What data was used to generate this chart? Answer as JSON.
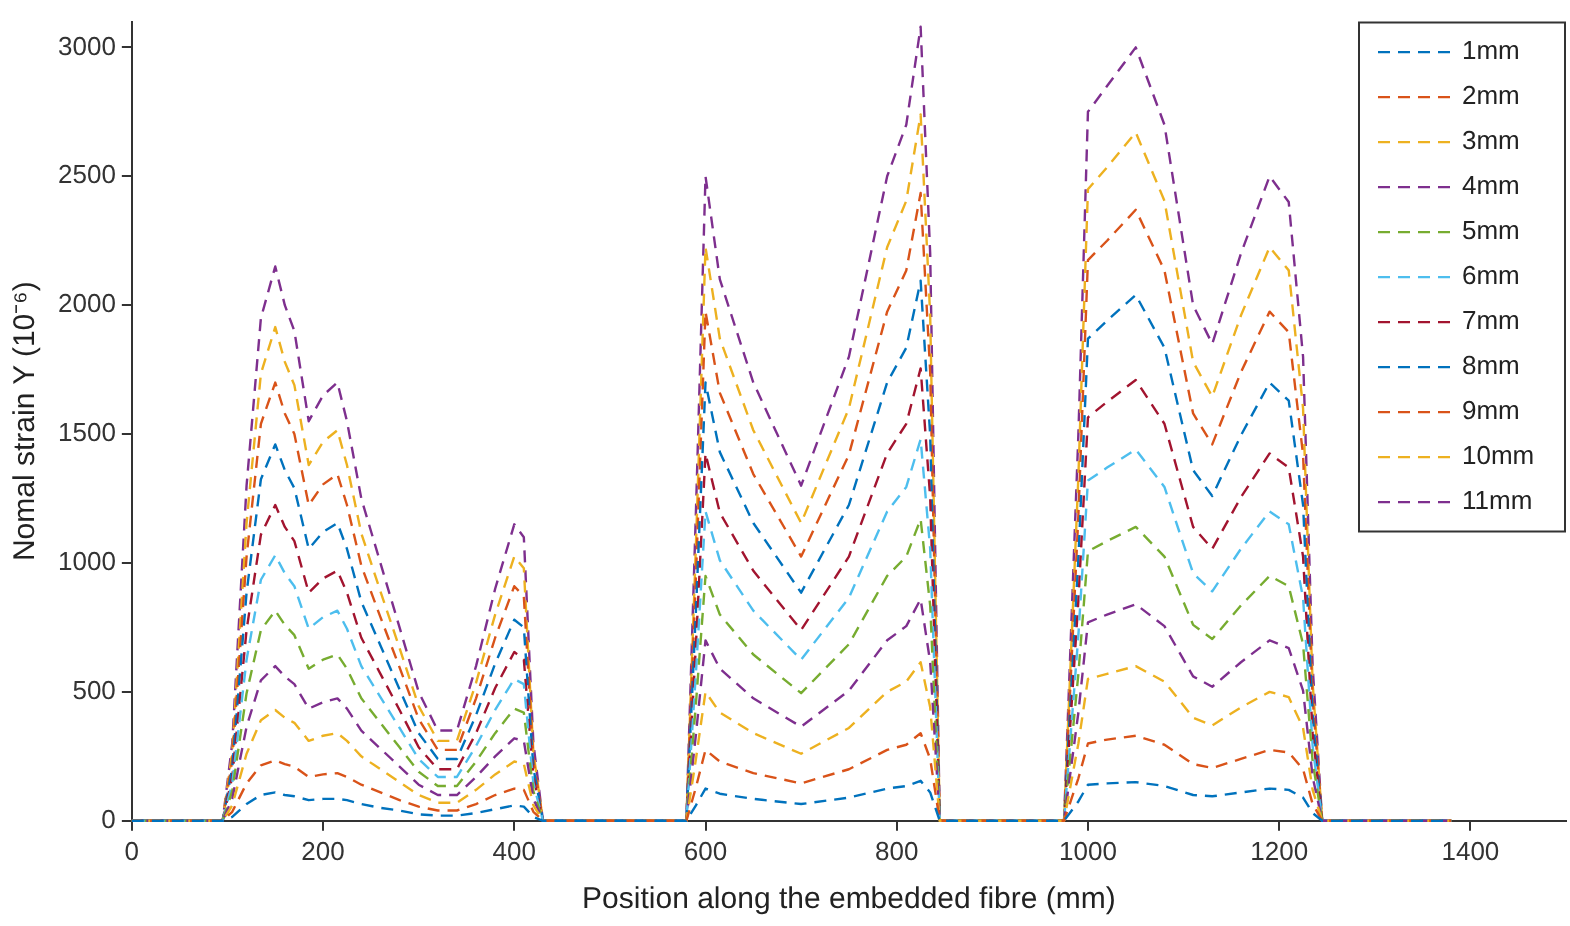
{
  "chart_data": {
    "type": "line",
    "xlabel": "Position along the embedded fibre (mm)",
    "ylabel": "Nomal strain Y (10⁻⁶)",
    "x": [
      0,
      95,
      105,
      120,
      135,
      150,
      160,
      170,
      185,
      200,
      215,
      225,
      240,
      260,
      280,
      300,
      320,
      340,
      360,
      380,
      400,
      410,
      420,
      430,
      570,
      580,
      590,
      600,
      615,
      650,
      700,
      750,
      790,
      810,
      825,
      835,
      845,
      960,
      975,
      990,
      1000,
      1020,
      1050,
      1080,
      1110,
      1130,
      1160,
      1190,
      1210,
      1225,
      1235,
      1245,
      1380
    ],
    "xlim": [
      0,
      1500
    ],
    "xticks": [
      0,
      200,
      400,
      600,
      800,
      1000,
      1200,
      1400
    ],
    "ylim": [
      0,
      3100
    ],
    "yticks": [
      0,
      500,
      1000,
      1500,
      2000,
      2500,
      3000
    ],
    "grid": false,
    "legend": "top right",
    "line_style": "dashed",
    "marker": "none",
    "series": [
      {
        "name": "1mm",
        "color": "#0072bd",
        "values": [
          0,
          0,
          15,
          65,
          100,
          110,
          100,
          95,
          80,
          85,
          85,
          80,
          65,
          50,
          40,
          25,
          20,
          20,
          30,
          45,
          60,
          55,
          15,
          0,
          0,
          0,
          60,
          125,
          105,
          85,
          65,
          90,
          125,
          135,
          155,
          110,
          0,
          0,
          0,
          75,
          140,
          145,
          150,
          135,
          100,
          95,
          110,
          125,
          120,
          90,
          30,
          0,
          0
        ]
      },
      {
        "name": "2mm",
        "color": "#d95319",
        "values": [
          0,
          0,
          35,
          145,
          215,
          235,
          220,
          210,
          170,
          180,
          185,
          170,
          140,
          110,
          80,
          55,
          40,
          40,
          65,
          100,
          125,
          120,
          35,
          0,
          0,
          0,
          130,
          275,
          230,
          185,
          145,
          200,
          275,
          295,
          340,
          240,
          0,
          0,
          0,
          165,
          300,
          315,
          330,
          295,
          220,
          205,
          240,
          275,
          265,
          200,
          65,
          0,
          0
        ]
      },
      {
        "name": "3mm",
        "color": "#edb120",
        "values": [
          0,
          0,
          60,
          260,
          390,
          430,
          400,
          380,
          310,
          330,
          340,
          310,
          250,
          200,
          150,
          100,
          70,
          70,
          120,
          180,
          230,
          220,
          60,
          0,
          0,
          0,
          240,
          500,
          420,
          340,
          260,
          360,
          500,
          540,
          615,
          440,
          0,
          0,
          0,
          300,
          550,
          570,
          600,
          540,
          400,
          370,
          440,
          500,
          480,
          360,
          120,
          0,
          0
        ]
      },
      {
        "name": "4mm",
        "color": "#7e2f8e",
        "values": [
          0,
          0,
          85,
          365,
          545,
          600,
          560,
          530,
          435,
          460,
          475,
          435,
          350,
          280,
          210,
          140,
          100,
          100,
          170,
          250,
          320,
          310,
          85,
          0,
          0,
          0,
          335,
          700,
          590,
          475,
          365,
          505,
          700,
          755,
          860,
          615,
          0,
          0,
          0,
          420,
          770,
          800,
          840,
          755,
          560,
          520,
          615,
          700,
          670,
          505,
          170,
          0,
          0
        ]
      },
      {
        "name": "5mm",
        "color": "#77ac30",
        "values": [
          0,
          0,
          115,
          495,
          740,
          815,
          760,
          720,
          590,
          625,
          645,
          590,
          475,
          380,
          285,
          190,
          135,
          135,
          230,
          340,
          435,
          420,
          115,
          0,
          0,
          0,
          455,
          950,
          800,
          645,
          495,
          685,
          950,
          1025,
          1170,
          835,
          0,
          0,
          0,
          570,
          1045,
          1085,
          1140,
          1025,
          760,
          705,
          835,
          950,
          910,
          685,
          230,
          0,
          0
        ]
      },
      {
        "name": "6mm",
        "color": "#4dbeee",
        "values": [
          0,
          0,
          145,
          625,
          935,
          1030,
          960,
          910,
          745,
          790,
          815,
          745,
          600,
          480,
          360,
          240,
          170,
          170,
          290,
          430,
          550,
          530,
          145,
          0,
          0,
          0,
          575,
          1200,
          1010,
          815,
          625,
          865,
          1200,
          1295,
          1480,
          1055,
          0,
          0,
          0,
          720,
          1320,
          1370,
          1440,
          1295,
          960,
          890,
          1055,
          1200,
          1150,
          865,
          290,
          0,
          0
        ]
      },
      {
        "name": "7mm",
        "color": "#a2142f",
        "values": [
          0,
          0,
          170,
          740,
          1110,
          1225,
          1140,
          1085,
          885,
          940,
          970,
          885,
          710,
          570,
          430,
          285,
          200,
          200,
          340,
          515,
          655,
          625,
          170,
          0,
          0,
          0,
          685,
          1425,
          1195,
          970,
          740,
          1025,
          1425,
          1540,
          1755,
          1255,
          0,
          0,
          0,
          855,
          1565,
          1625,
          1710,
          1540,
          1140,
          1055,
          1255,
          1425,
          1370,
          1025,
          340,
          0,
          0
        ]
      },
      {
        "name": "8mm",
        "color": "#0072bd",
        "values": [
          0,
          0,
          205,
          885,
          1325,
          1460,
          1360,
          1290,
          1055,
          1120,
          1155,
          1055,
          850,
          680,
          510,
          340,
          240,
          240,
          410,
          610,
          780,
          750,
          205,
          0,
          0,
          0,
          815,
          1700,
          1430,
          1155,
          885,
          1225,
          1700,
          1835,
          2095,
          1495,
          0,
          0,
          0,
          1020,
          1870,
          1940,
          2040,
          1835,
          1360,
          1260,
          1495,
          1700,
          1630,
          1225,
          410,
          0,
          0
        ]
      },
      {
        "name": "9mm",
        "color": "#d95319",
        "values": [
          0,
          0,
          235,
          1025,
          1540,
          1700,
          1580,
          1500,
          1225,
          1305,
          1345,
          1225,
          990,
          790,
          595,
          395,
          275,
          275,
          475,
          710,
          910,
          870,
          235,
          0,
          0,
          0,
          950,
          1975,
          1660,
          1345,
          1025,
          1420,
          1975,
          2135,
          2435,
          1740,
          0,
          0,
          0,
          1185,
          2175,
          2250,
          2370,
          2135,
          1580,
          1460,
          1740,
          1975,
          1895,
          1420,
          475,
          0,
          0
        ]
      },
      {
        "name": "10mm",
        "color": "#edb120",
        "values": [
          0,
          0,
          265,
          1155,
          1735,
          1915,
          1780,
          1690,
          1380,
          1470,
          1515,
          1380,
          1115,
          890,
          670,
          445,
          310,
          310,
          535,
          800,
          1025,
          980,
          265,
          0,
          0,
          0,
          1070,
          2225,
          1870,
          1515,
          1155,
          1600,
          2225,
          2405,
          2740,
          1960,
          0,
          0,
          0,
          1335,
          2450,
          2535,
          2670,
          2405,
          1780,
          1645,
          1960,
          2225,
          2135,
          1600,
          535,
          0,
          0
        ]
      },
      {
        "name": "11mm",
        "color": "#7e2f8e",
        "values": [
          0,
          0,
          300,
          1300,
          1950,
          2150,
          2000,
          1900,
          1550,
          1650,
          1700,
          1550,
          1250,
          1000,
          750,
          500,
          350,
          350,
          600,
          900,
          1150,
          1100,
          300,
          0,
          0,
          0,
          1200,
          2500,
          2100,
          1700,
          1300,
          1800,
          2500,
          2700,
          3080,
          2200,
          0,
          0,
          0,
          1500,
          2750,
          2850,
          3000,
          2700,
          2000,
          1850,
          2200,
          2500,
          2400,
          1800,
          600,
          0,
          0
        ]
      }
    ]
  }
}
